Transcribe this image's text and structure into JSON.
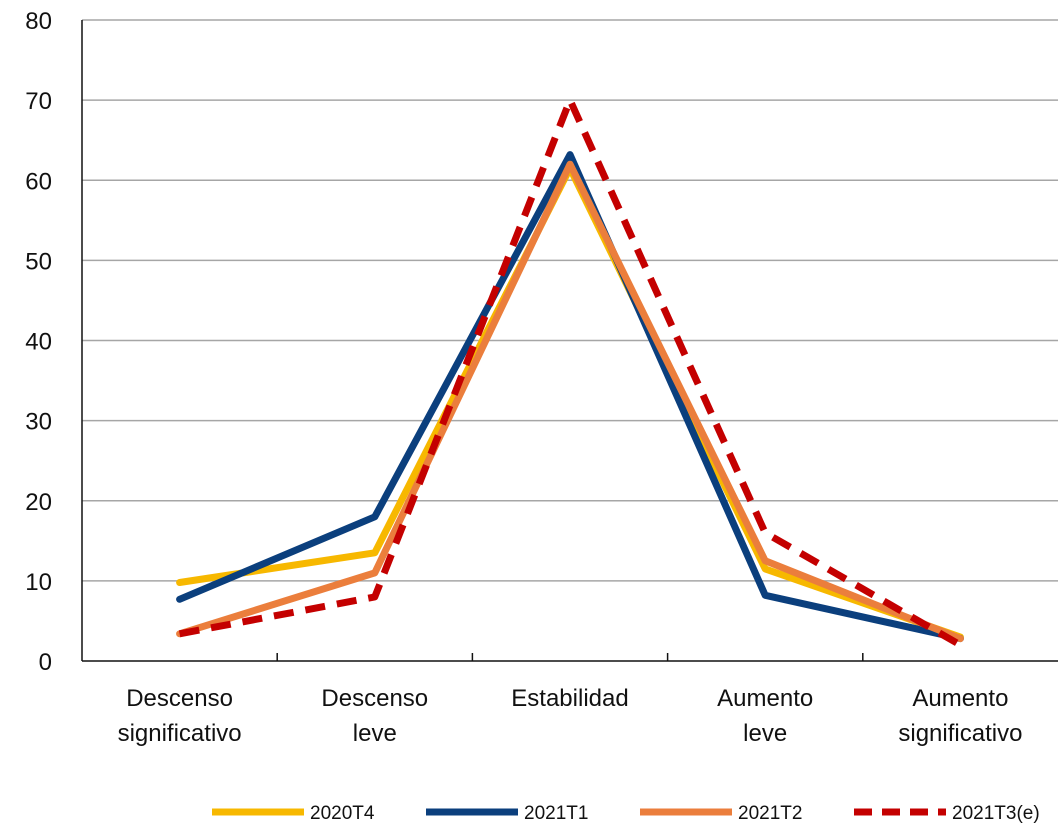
{
  "chart_data": {
    "type": "line",
    "categories": [
      [
        "Descenso",
        "significativo"
      ],
      [
        "Descenso",
        "leve"
      ],
      [
        "Estabilidad"
      ],
      [
        "Aumento",
        "leve"
      ],
      [
        "Aumento",
        "significativo"
      ]
    ],
    "ylim": [
      0,
      80
    ],
    "yticks": [
      "0",
      "10",
      "20",
      "30",
      "40",
      "50",
      "60",
      "70",
      "80"
    ],
    "grid": true,
    "legend_position": "bottom",
    "series": [
      {
        "name": "2020T4",
        "values": [
          9.8,
          13.5,
          61.5,
          11.5,
          3.0
        ],
        "color": "#f7b800",
        "dashed": false
      },
      {
        "name": "2021T1",
        "values": [
          7.7,
          18.0,
          63.2,
          8.2,
          2.8
        ],
        "color": "#0b3f7d",
        "dashed": false
      },
      {
        "name": "2021T2",
        "values": [
          3.4,
          11.0,
          62.0,
          12.5,
          2.8
        ],
        "color": "#eb7e3c",
        "dashed": false
      },
      {
        "name": "2021T3(e)",
        "values": [
          3.4,
          8.0,
          70.0,
          16.0,
          2.0
        ],
        "color": "#c40000",
        "dashed": true
      }
    ]
  }
}
